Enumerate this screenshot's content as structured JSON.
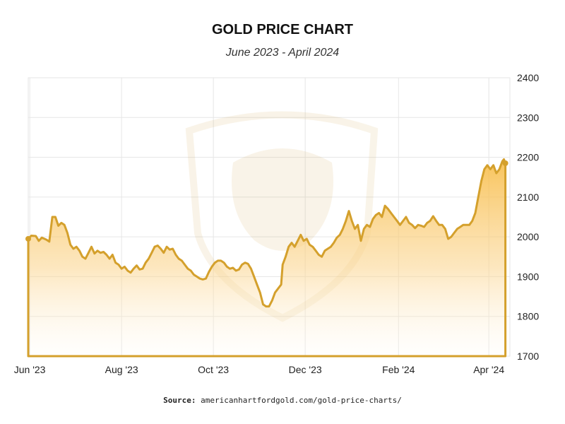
{
  "source_label": "Source:",
  "source_url": "americanhartfordgold.com/gold-price-charts/",
  "colors": {
    "line": "#d4a02c",
    "fill_top": "#f7b93e",
    "grid": "#e6e6e6"
  },
  "chart_data": {
    "type": "area",
    "title": "GOLD PRICE CHART",
    "subtitle": "June 2023 - April 2024",
    "xlabel": "",
    "ylabel": "",
    "ylim": [
      1700,
      2400
    ],
    "yticks": [
      1700,
      1800,
      1900,
      2000,
      2100,
      2200,
      2300,
      2400
    ],
    "xlim": [
      "2023-05-31",
      "2024-04-15"
    ],
    "xticks": [
      {
        "date": "2023-06-01",
        "label": "Jun '23"
      },
      {
        "date": "2023-08-01",
        "label": "Aug '23"
      },
      {
        "date": "2023-10-01",
        "label": "Oct '23"
      },
      {
        "date": "2023-12-01",
        "label": "Dec '23"
      },
      {
        "date": "2024-02-01",
        "label": "Feb '24"
      },
      {
        "date": "2024-04-01",
        "label": "Apr '24"
      }
    ],
    "grid": true,
    "y_axis_position": "right",
    "series": [
      {
        "points": [
          [
            "2023-05-31",
            1995
          ],
          [
            "2023-06-02",
            2003
          ],
          [
            "2023-06-05",
            2002
          ],
          [
            "2023-06-07",
            1990
          ],
          [
            "2023-06-09",
            1998
          ],
          [
            "2023-06-12",
            1993
          ],
          [
            "2023-06-14",
            1988
          ],
          [
            "2023-06-16",
            2050
          ],
          [
            "2023-06-18",
            2050
          ],
          [
            "2023-06-20",
            2028
          ],
          [
            "2023-06-22",
            2035
          ],
          [
            "2023-06-24",
            2030
          ],
          [
            "2023-06-26",
            2010
          ],
          [
            "2023-06-28",
            1980
          ],
          [
            "2023-06-30",
            1970
          ],
          [
            "2023-07-02",
            1975
          ],
          [
            "2023-07-04",
            1965
          ],
          [
            "2023-07-06",
            1950
          ],
          [
            "2023-07-08",
            1945
          ],
          [
            "2023-07-10",
            1960
          ],
          [
            "2023-07-12",
            1975
          ],
          [
            "2023-07-14",
            1958
          ],
          [
            "2023-07-16",
            1965
          ],
          [
            "2023-07-18",
            1960
          ],
          [
            "2023-07-20",
            1962
          ],
          [
            "2023-07-22",
            1955
          ],
          [
            "2023-07-24",
            1945
          ],
          [
            "2023-07-26",
            1955
          ],
          [
            "2023-07-28",
            1935
          ],
          [
            "2023-07-30",
            1930
          ],
          [
            "2023-08-01",
            1920
          ],
          [
            "2023-08-03",
            1925
          ],
          [
            "2023-08-05",
            1915
          ],
          [
            "2023-08-07",
            1910
          ],
          [
            "2023-08-09",
            1920
          ],
          [
            "2023-08-11",
            1928
          ],
          [
            "2023-08-13",
            1918
          ],
          [
            "2023-08-15",
            1920
          ],
          [
            "2023-08-17",
            1935
          ],
          [
            "2023-08-19",
            1945
          ],
          [
            "2023-08-21",
            1960
          ],
          [
            "2023-08-23",
            1975
          ],
          [
            "2023-08-25",
            1978
          ],
          [
            "2023-08-27",
            1970
          ],
          [
            "2023-08-29",
            1960
          ],
          [
            "2023-08-31",
            1975
          ],
          [
            "2023-09-02",
            1968
          ],
          [
            "2023-09-04",
            1970
          ],
          [
            "2023-09-06",
            1955
          ],
          [
            "2023-09-08",
            1945
          ],
          [
            "2023-09-10",
            1940
          ],
          [
            "2023-09-12",
            1930
          ],
          [
            "2023-09-14",
            1920
          ],
          [
            "2023-09-16",
            1915
          ],
          [
            "2023-09-18",
            1905
          ],
          [
            "2023-09-20",
            1900
          ],
          [
            "2023-09-22",
            1895
          ],
          [
            "2023-09-24",
            1893
          ],
          [
            "2023-09-26",
            1895
          ],
          [
            "2023-09-28",
            1912
          ],
          [
            "2023-09-30",
            1925
          ],
          [
            "2023-10-02",
            1935
          ],
          [
            "2023-10-04",
            1940
          ],
          [
            "2023-10-06",
            1940
          ],
          [
            "2023-10-08",
            1935
          ],
          [
            "2023-10-10",
            1925
          ],
          [
            "2023-10-12",
            1920
          ],
          [
            "2023-10-14",
            1922
          ],
          [
            "2023-10-16",
            1915
          ],
          [
            "2023-10-18",
            1918
          ],
          [
            "2023-10-20",
            1930
          ],
          [
            "2023-10-22",
            1935
          ],
          [
            "2023-10-24",
            1932
          ],
          [
            "2023-10-26",
            1920
          ],
          [
            "2023-10-28",
            1900
          ],
          [
            "2023-10-30",
            1880
          ],
          [
            "2023-11-01",
            1860
          ],
          [
            "2023-11-03",
            1830
          ],
          [
            "2023-11-05",
            1825
          ],
          [
            "2023-11-07",
            1825
          ],
          [
            "2023-11-09",
            1840
          ],
          [
            "2023-11-11",
            1860
          ],
          [
            "2023-11-13",
            1870
          ],
          [
            "2023-11-15",
            1880
          ],
          [
            "2023-11-16",
            1930
          ],
          [
            "2023-11-18",
            1950
          ],
          [
            "2023-11-20",
            1975
          ],
          [
            "2023-11-22",
            1985
          ],
          [
            "2023-11-24",
            1975
          ],
          [
            "2023-11-26",
            1990
          ],
          [
            "2023-11-28",
            2005
          ],
          [
            "2023-11-30",
            1990
          ],
          [
            "2023-12-02",
            1995
          ],
          [
            "2023-12-04",
            1980
          ],
          [
            "2023-12-06",
            1975
          ],
          [
            "2023-12-08",
            1965
          ],
          [
            "2023-12-10",
            1955
          ],
          [
            "2023-12-12",
            1950
          ],
          [
            "2023-12-14",
            1965
          ],
          [
            "2023-12-16",
            1970
          ],
          [
            "2023-12-18",
            1975
          ],
          [
            "2023-12-20",
            1985
          ],
          [
            "2023-12-22",
            1998
          ],
          [
            "2023-12-24",
            2005
          ],
          [
            "2023-12-26",
            2020
          ],
          [
            "2023-12-28",
            2040
          ],
          [
            "2023-12-30",
            2065
          ],
          [
            "2024-01-01",
            2040
          ],
          [
            "2024-01-03",
            2020
          ],
          [
            "2024-01-05",
            2030
          ],
          [
            "2024-01-07",
            1990
          ],
          [
            "2024-01-09",
            2020
          ],
          [
            "2024-01-11",
            2030
          ],
          [
            "2024-01-13",
            2025
          ],
          [
            "2024-01-15",
            2045
          ],
          [
            "2024-01-17",
            2055
          ],
          [
            "2024-01-19",
            2060
          ],
          [
            "2024-01-21",
            2050
          ],
          [
            "2024-01-23",
            2078
          ],
          [
            "2024-01-25",
            2070
          ],
          [
            "2024-01-27",
            2060
          ],
          [
            "2024-01-29",
            2050
          ],
          [
            "2024-01-31",
            2040
          ],
          [
            "2024-02-02",
            2030
          ],
          [
            "2024-02-04",
            2040
          ],
          [
            "2024-02-06",
            2050
          ],
          [
            "2024-02-08",
            2035
          ],
          [
            "2024-02-10",
            2030
          ],
          [
            "2024-02-12",
            2022
          ],
          [
            "2024-02-14",
            2030
          ],
          [
            "2024-02-16",
            2028
          ],
          [
            "2024-02-18",
            2025
          ],
          [
            "2024-02-20",
            2035
          ],
          [
            "2024-02-22",
            2040
          ],
          [
            "2024-02-24",
            2052
          ],
          [
            "2024-02-26",
            2040
          ],
          [
            "2024-02-28",
            2030
          ],
          [
            "2024-03-01",
            2030
          ],
          [
            "2024-03-03",
            2020
          ],
          [
            "2024-03-05",
            1995
          ],
          [
            "2024-03-07",
            2000
          ],
          [
            "2024-03-09",
            2010
          ],
          [
            "2024-03-11",
            2020
          ],
          [
            "2024-03-13",
            2025
          ],
          [
            "2024-03-15",
            2030
          ],
          [
            "2024-03-17",
            2030
          ],
          [
            "2024-03-19",
            2030
          ],
          [
            "2024-03-21",
            2040
          ],
          [
            "2024-03-23",
            2060
          ],
          [
            "2024-03-25",
            2100
          ],
          [
            "2024-03-27",
            2140
          ],
          [
            "2024-03-29",
            2170
          ],
          [
            "2024-03-31",
            2180
          ],
          [
            "2024-04-02",
            2170
          ],
          [
            "2024-04-04",
            2180
          ],
          [
            "2024-04-06",
            2160
          ],
          [
            "2024-04-08",
            2170
          ],
          [
            "2024-04-10",
            2190
          ],
          [
            "2024-04-11",
            2195
          ],
          [
            "2024-04-12",
            2185
          ]
        ]
      }
    ]
  }
}
